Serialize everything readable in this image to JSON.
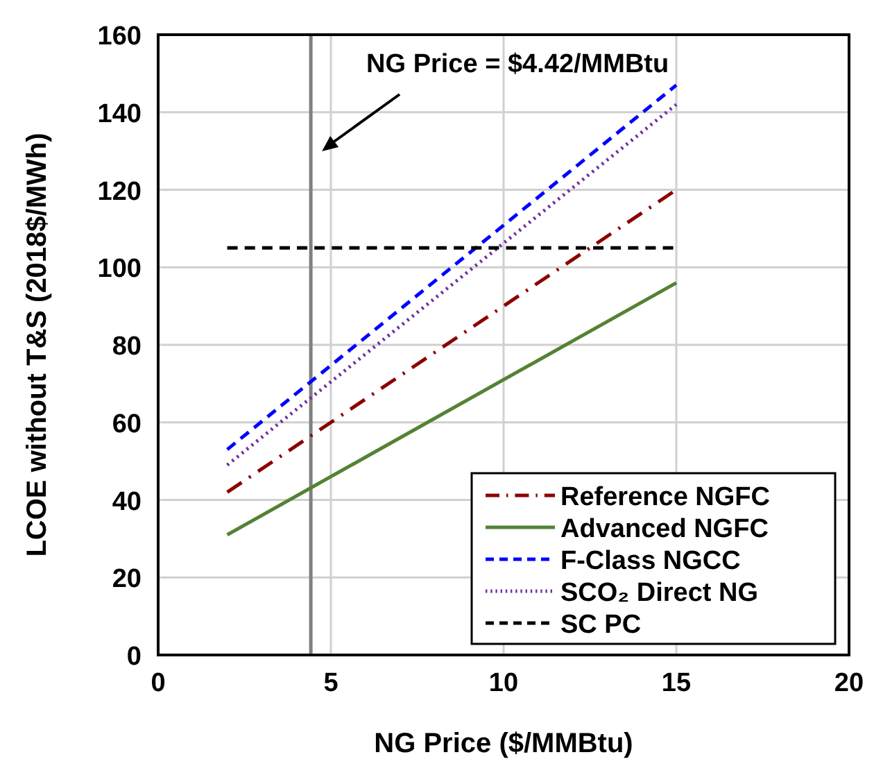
{
  "chart_data": {
    "type": "line",
    "xlabel": "NG Price ($/MMBtu)",
    "ylabel": "LCOE without T&S (2018$/MWh)",
    "xlim": [
      0,
      20
    ],
    "ylim": [
      0,
      160
    ],
    "xticks": [
      0,
      5,
      10,
      15,
      20
    ],
    "yticks": [
      0,
      20,
      40,
      60,
      80,
      100,
      120,
      140,
      160
    ],
    "grid": true,
    "legend": "bottom right",
    "marker": "none",
    "series": [
      {
        "name": "Reference NGFC",
        "color": "#8b0000",
        "line_style": "dashdot",
        "x": [
          2,
          15
        ],
        "values": [
          42,
          120
        ]
      },
      {
        "name": "Advanced NGFC",
        "color": "#548235",
        "line_style": "solid",
        "x": [
          2,
          6,
          15
        ],
        "values": [
          31,
          51,
          96
        ]
      },
      {
        "name": "F-Class NGCC",
        "color": "#0000ff",
        "line_style": "dashed",
        "x": [
          2,
          15
        ],
        "values": [
          53,
          147
        ]
      },
      {
        "name": "SCO₂ Direct NG",
        "color": "#7030a0",
        "line_style": "dotted",
        "x": [
          2,
          15
        ],
        "values": [
          49,
          142
        ]
      },
      {
        "name": "SC PC",
        "color": "#000000",
        "line_style": "dashed",
        "x": [
          2,
          15
        ],
        "values": [
          105,
          105
        ]
      }
    ],
    "ref_lines": [
      {
        "axis": "x",
        "value": 4.42,
        "label": "NG Price = $4.42/MMBtu",
        "color": "#808080"
      }
    ]
  }
}
